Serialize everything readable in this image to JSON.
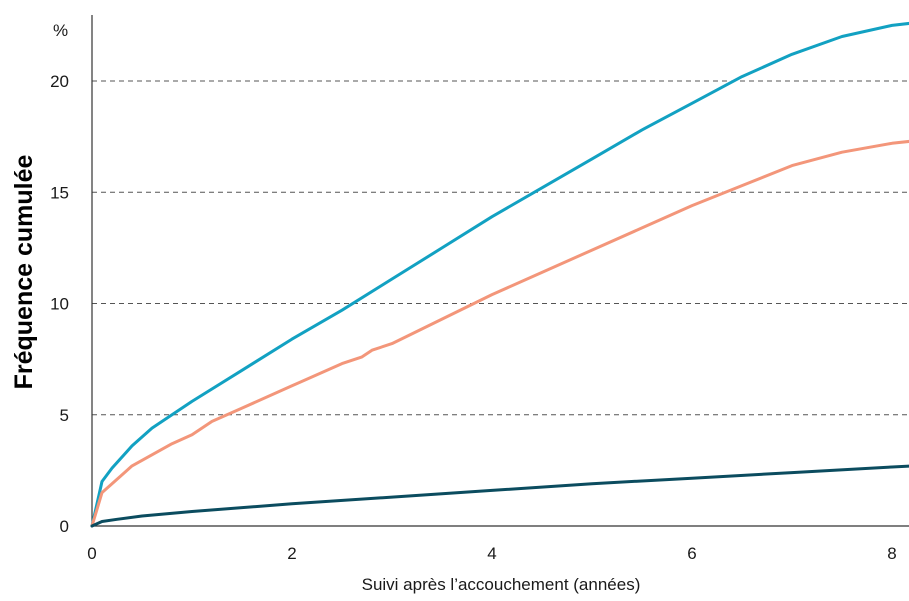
{
  "chart_data": {
    "type": "line",
    "xlabel": "Suivi après l’accouchement (années)",
    "ylabel": "Fréquence cumulée",
    "y_unit": "%",
    "xlim": [
      0,
      8.2
    ],
    "ylim": [
      0,
      22.5
    ],
    "x_ticks": [
      0,
      2,
      4,
      6,
      8
    ],
    "y_ticks": [
      0,
      5,
      10,
      15,
      20
    ],
    "grid": "horizontal dashed",
    "series": [
      {
        "color": "#12a1c2",
        "x": [
          0,
          0.1,
          0.2,
          0.4,
          0.6,
          0.8,
          1.0,
          1.5,
          2.0,
          2.5,
          3.0,
          3.5,
          4.0,
          4.5,
          5.0,
          5.5,
          6.0,
          6.5,
          7.0,
          7.5,
          8.0,
          8.2
        ],
        "y": [
          0,
          2.0,
          2.6,
          3.6,
          4.4,
          5.0,
          5.6,
          7.0,
          8.4,
          9.7,
          11.1,
          12.5,
          13.9,
          15.2,
          16.5,
          17.8,
          19.0,
          20.2,
          21.2,
          22.0,
          22.5,
          22.6
        ]
      },
      {
        "color": "#f3967a",
        "x": [
          0,
          0.1,
          0.2,
          0.4,
          0.6,
          0.8,
          1.0,
          1.2,
          1.5,
          2.0,
          2.5,
          2.7,
          2.8,
          3.0,
          3.5,
          4.0,
          4.5,
          5.0,
          5.5,
          6.0,
          6.5,
          7.0,
          7.5,
          8.0,
          8.2
        ],
        "y": [
          0,
          1.5,
          1.9,
          2.7,
          3.2,
          3.7,
          4.1,
          4.7,
          5.3,
          6.3,
          7.3,
          7.6,
          7.9,
          8.2,
          9.3,
          10.4,
          11.4,
          12.4,
          13.4,
          14.4,
          15.3,
          16.2,
          16.8,
          17.2,
          17.3
        ]
      },
      {
        "color": "#0b4c5f",
        "x": [
          0,
          0.1,
          0.25,
          0.5,
          1.0,
          2.0,
          3.0,
          4.0,
          5.0,
          6.0,
          7.0,
          8.0,
          8.2
        ],
        "y": [
          0,
          0.2,
          0.3,
          0.45,
          0.65,
          1.0,
          1.3,
          1.6,
          1.9,
          2.15,
          2.4,
          2.65,
          2.7
        ]
      }
    ]
  }
}
